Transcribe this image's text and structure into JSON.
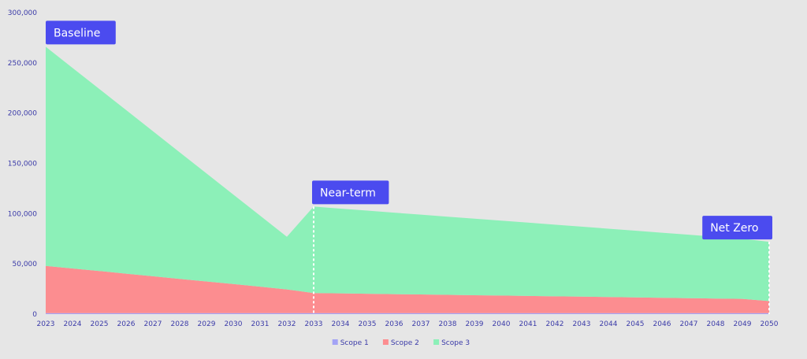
{
  "chart_data": {
    "type": "area",
    "stacked": true,
    "x": [
      2023,
      2024,
      2025,
      2026,
      2027,
      2028,
      2029,
      2030,
      2031,
      2032,
      2033,
      2034,
      2035,
      2036,
      2037,
      2038,
      2039,
      2040,
      2041,
      2042,
      2043,
      2044,
      2045,
      2046,
      2047,
      2048,
      2049,
      2050
    ],
    "series": [
      {
        "name": "Scope 1",
        "color": "#a3a3f5",
        "values": [
          1000,
          1000,
          1000,
          1000,
          1000,
          1000,
          1000,
          1000,
          1000,
          1000,
          1000,
          1000,
          1000,
          1000,
          1000,
          1000,
          1000,
          1000,
          1000,
          1000,
          1000,
          1000,
          1000,
          1000,
          1000,
          1000,
          1000,
          1000
        ]
      },
      {
        "name": "Scope 2",
        "color": "#fc8d90",
        "values": [
          47000,
          44400,
          41900,
          39300,
          36700,
          34100,
          31500,
          28900,
          26300,
          23600,
          20000,
          19700,
          19300,
          18900,
          18600,
          18200,
          17800,
          17500,
          17100,
          16700,
          16400,
          16000,
          15600,
          15300,
          14900,
          14500,
          14200,
          12000
        ]
      },
      {
        "name": "Scope 3",
        "color": "#8cf0b8",
        "values": [
          218000,
          199600,
          181100,
          162700,
          144300,
          125900,
          107500,
          89100,
          70700,
          52400,
          86000,
          84300,
          82700,
          81100,
          79400,
          77800,
          76200,
          74500,
          72900,
          71300,
          69600,
          68000,
          66400,
          64700,
          63100,
          61500,
          59800,
          59000
        ]
      }
    ],
    "ylim": [
      0,
      300000
    ],
    "yticks": [
      0,
      50000,
      100000,
      150000,
      200000,
      250000,
      300000
    ],
    "ytick_labels": [
      "0",
      "50,000",
      "100,000",
      "150,000",
      "200,000",
      "250,000",
      "300,000"
    ],
    "xlabel": "",
    "ylabel": "",
    "legend_position": "bottom",
    "grid": false,
    "annotations": [
      {
        "label": "Baseline",
        "x": 2023,
        "marker": false
      },
      {
        "label": "Near-term",
        "x": 2033,
        "marker": true
      },
      {
        "label": "Net Zero",
        "x": 2050,
        "marker": true
      }
    ],
    "callout_color": "#4b4bef"
  }
}
